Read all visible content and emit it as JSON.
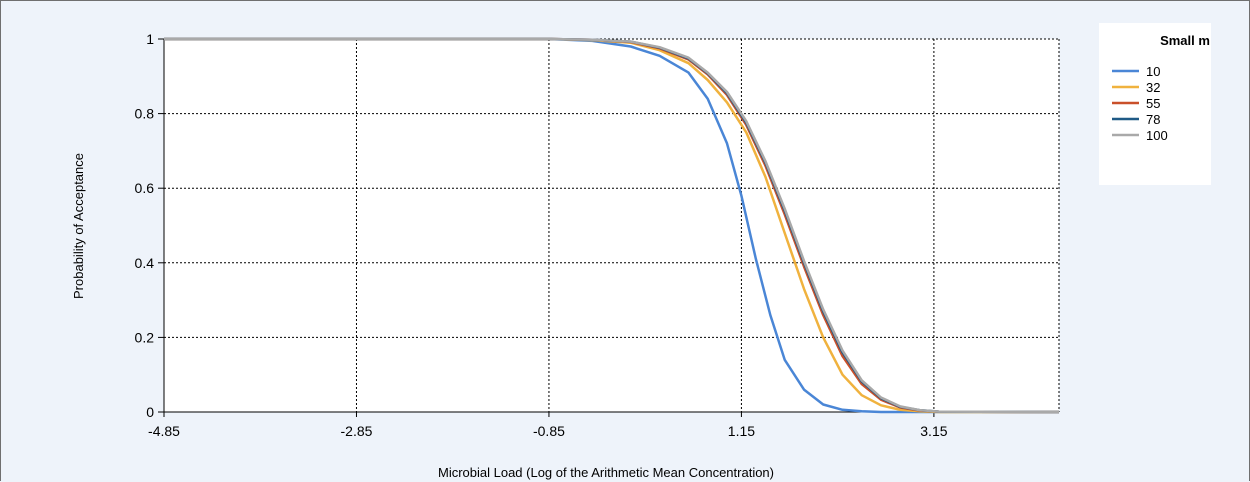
{
  "chart_data": {
    "type": "line",
    "xlabel": "Microbial Load (Log of the Arithmetic Mean Concentration)",
    "ylabel": "Probability of Acceptance",
    "xlim": [
      -4.85,
      4.45
    ],
    "ylim": [
      0,
      1
    ],
    "x_ticks": [
      -4.85,
      -2.85,
      -0.85,
      1.15,
      3.15
    ],
    "x_tick_labels": [
      "-4.85",
      "-2.85",
      "-0.85",
      "1.15",
      "3.15"
    ],
    "y_ticks": [
      0,
      0.2,
      0.4,
      0.6,
      0.8,
      1
    ],
    "y_tick_labels": [
      "0",
      "0.2",
      "0.4",
      "0.6",
      "0.8",
      "1"
    ],
    "grid": true,
    "legend": {
      "title": "Small m",
      "position": "top-right"
    },
    "series": [
      {
        "name": "10",
        "color": "#4a86d6",
        "x": [
          -4.85,
          -0.85,
          -0.4,
          0.0,
          0.3,
          0.6,
          0.8,
          1.0,
          1.15,
          1.3,
          1.45,
          1.6,
          1.8,
          2.0,
          2.2,
          2.4,
          2.6,
          4.45
        ],
        "y": [
          1,
          1,
          0.995,
          0.98,
          0.955,
          0.91,
          0.84,
          0.72,
          0.58,
          0.41,
          0.26,
          0.14,
          0.06,
          0.02,
          0.006,
          0.002,
          0,
          0
        ]
      },
      {
        "name": "32",
        "color": "#f0b23e",
        "x": [
          -4.85,
          -0.85,
          -0.4,
          0.0,
          0.3,
          0.6,
          0.8,
          1.0,
          1.2,
          1.4,
          1.6,
          1.8,
          2.0,
          2.2,
          2.4,
          2.6,
          2.8,
          3.0,
          3.2,
          4.45
        ],
        "y": [
          1,
          1,
          0.997,
          0.99,
          0.97,
          0.935,
          0.89,
          0.83,
          0.75,
          0.63,
          0.48,
          0.33,
          0.2,
          0.1,
          0.045,
          0.018,
          0.006,
          0.002,
          0,
          0
        ]
      },
      {
        "name": "55",
        "color": "#c9502a",
        "x": [
          -4.85,
          -0.85,
          -0.4,
          0.0,
          0.3,
          0.6,
          0.8,
          1.0,
          1.2,
          1.4,
          1.6,
          1.8,
          2.0,
          2.2,
          2.4,
          2.6,
          2.8,
          3.0,
          3.2,
          4.45
        ],
        "y": [
          1,
          1,
          0.998,
          0.992,
          0.975,
          0.945,
          0.905,
          0.85,
          0.77,
          0.66,
          0.53,
          0.39,
          0.26,
          0.15,
          0.075,
          0.033,
          0.012,
          0.004,
          0.001,
          0
        ]
      },
      {
        "name": "78",
        "color": "#1f5a86",
        "x": [
          -4.85,
          -0.85,
          -0.4,
          0.0,
          0.3,
          0.6,
          0.8,
          1.0,
          1.2,
          1.4,
          1.6,
          1.8,
          2.0,
          2.2,
          2.4,
          2.6,
          2.8,
          3.0,
          3.2,
          4.45
        ],
        "y": [
          1,
          1,
          0.998,
          0.993,
          0.977,
          0.948,
          0.908,
          0.855,
          0.776,
          0.668,
          0.54,
          0.4,
          0.27,
          0.16,
          0.082,
          0.037,
          0.014,
          0.005,
          0.001,
          0
        ]
      },
      {
        "name": "100",
        "color": "#a9a9a9",
        "x": [
          -4.85,
          -0.85,
          -0.4,
          0.0,
          0.3,
          0.6,
          0.8,
          1.0,
          1.2,
          1.4,
          1.6,
          1.8,
          2.0,
          2.2,
          2.4,
          2.6,
          2.8,
          3.0,
          3.2,
          4.45
        ],
        "y": [
          1,
          1,
          0.998,
          0.993,
          0.978,
          0.95,
          0.91,
          0.858,
          0.78,
          0.672,
          0.545,
          0.405,
          0.275,
          0.165,
          0.085,
          0.039,
          0.015,
          0.005,
          0.001,
          0
        ]
      }
    ]
  }
}
